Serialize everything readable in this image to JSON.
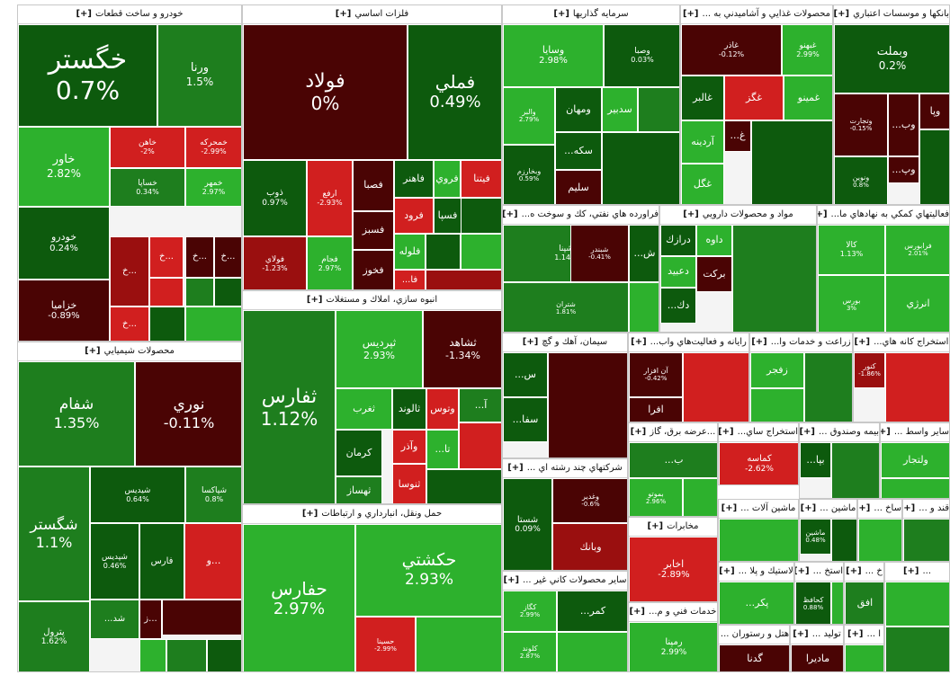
{
  "colors": {
    "dg": "#0d5a0d",
    "mg": "#1e7e1e",
    "lg": "#2db12d",
    "dr": "#4a0404",
    "mr": "#9a0f0f",
    "lr": "#d11f1f"
  },
  "chart_data": {
    "type": "heatmap",
    "plus_marker": "[+]",
    "sectors": [
      {
        "name": "خودرو و ساخت قطعات",
        "tiles": [
          {
            "symbol": "خگستر",
            "change": "0.7%",
            "color": "dg"
          },
          {
            "symbol": "ورنا",
            "change": "1.5%",
            "color": "mg"
          },
          {
            "symbol": "خاور",
            "change": "2.82%",
            "color": "lg"
          },
          {
            "symbol": "خاهن",
            "change": "-2%",
            "color": "lr"
          },
          {
            "symbol": "خمحركه",
            "change": "-2.99%",
            "color": "lr"
          },
          {
            "symbol": "خودرو",
            "change": "0.24%",
            "color": "dg"
          },
          {
            "symbol": "خساپا",
            "change": "0.34%",
            "color": "mg"
          },
          {
            "symbol": "خمهر",
            "change": "2.97%",
            "color": "lg"
          },
          {
            "symbol": "خزاميا",
            "change": "-0.89%",
            "color": "dr"
          },
          {
            "symbol": "خ...",
            "change": "",
            "color": "mr"
          },
          {
            "symbol": "خ...",
            "change": "",
            "color": "lr"
          },
          {
            "symbol": "خ...",
            "change": "",
            "color": "dr"
          },
          {
            "symbol": "خ...",
            "change": "",
            "color": "dr"
          },
          {
            "symbol": "خ...",
            "change": "",
            "color": "lr"
          }
        ]
      },
      {
        "name": "محصولات شيميايي",
        "tiles": [
          {
            "symbol": "شفام",
            "change": "1.35%",
            "color": "mg"
          },
          {
            "symbol": "نوري",
            "change": "-0.11%",
            "color": "dr"
          },
          {
            "symbol": "شگستر",
            "change": "1.1%",
            "color": "mg"
          },
          {
            "symbol": "شيديس",
            "change": "0.64%",
            "color": "dg"
          },
          {
            "symbol": "شپاكسا",
            "change": "0.8%",
            "color": "mg"
          },
          {
            "symbol": "پترول",
            "change": "1.62%",
            "color": "mg"
          },
          {
            "symbol": "شپديس",
            "change": "0.46%",
            "color": "dg"
          },
          {
            "symbol": "فارس",
            "change": "",
            "color": "dg"
          },
          {
            "symbol": "و...",
            "change": "",
            "color": "lr"
          },
          {
            "symbol": "...شد",
            "change": "",
            "color": "mg"
          },
          {
            "symbol": "ز...",
            "change": "",
            "color": "dr"
          }
        ]
      },
      {
        "name": "فلزات اساسي",
        "tiles": [
          {
            "symbol": "فولاد",
            "change": "0%",
            "color": "dr"
          },
          {
            "symbol": "فملي",
            "change": "0.49%",
            "color": "dg"
          },
          {
            "symbol": "ذوب",
            "change": "0.97%",
            "color": "dg"
          },
          {
            "symbol": "ارفع",
            "change": "-2.93%",
            "color": "lr"
          },
          {
            "symbol": "فصبا",
            "change": "",
            "color": "dr"
          },
          {
            "symbol": "فاهنر",
            "change": "",
            "color": "dg"
          },
          {
            "symbol": "فروي",
            "change": "",
            "color": "lg"
          },
          {
            "symbol": "فيتنا",
            "change": "",
            "color": "lr"
          },
          {
            "symbol": "فولاي",
            "change": "-1.23%",
            "color": "mr"
          },
          {
            "symbol": "فجام",
            "change": "2.97%",
            "color": "lg"
          },
          {
            "symbol": "فسپا",
            "change": "",
            "color": "dg"
          },
          {
            "symbol": "فرود",
            "change": "",
            "color": "lr"
          },
          {
            "symbol": "فسبز",
            "change": "",
            "color": "dr"
          },
          {
            "symbol": "فلوله",
            "change": "",
            "color": "lg"
          },
          {
            "symbol": "فخوز",
            "change": "",
            "color": "dr"
          },
          {
            "symbol": "...فا",
            "change": "",
            "color": "lr"
          }
        ]
      },
      {
        "name": "انبوه سازي، املاك و مستغلات",
        "tiles": [
          {
            "symbol": "ثفارس",
            "change": "1.12%",
            "color": "mg"
          },
          {
            "symbol": "ثپرديس",
            "change": "2.93%",
            "color": "lg"
          },
          {
            "symbol": "ثشاهد",
            "change": "-1.34%",
            "color": "dr"
          },
          {
            "symbol": "ثغرب",
            "change": "",
            "color": "lg"
          },
          {
            "symbol": "ثالوند",
            "change": "",
            "color": "dg"
          },
          {
            "symbol": "وتوس",
            "change": "",
            "color": "lr"
          },
          {
            "symbol": "...آ",
            "change": "",
            "color": "mg"
          },
          {
            "symbol": "كرمان",
            "change": "",
            "color": "dg"
          },
          {
            "symbol": "وآذر",
            "change": "",
            "color": "lr"
          },
          {
            "symbol": "...تا",
            "change": "",
            "color": "lg"
          },
          {
            "symbol": "ثهساز",
            "change": "",
            "color": "mg"
          },
          {
            "symbol": "ثنوسا",
            "change": "",
            "color": "lr"
          }
        ]
      },
      {
        "name": "حمل ونقل، انبارداري و ارتباطات",
        "tiles": [
          {
            "symbol": "حفارس",
            "change": "2.97%",
            "color": "lg"
          },
          {
            "symbol": "حكشتي",
            "change": "2.93%",
            "color": "lg"
          },
          {
            "symbol": "حسينا",
            "change": "-2.99%",
            "color": "lr"
          }
        ]
      },
      {
        "name": "سرمايه گذاريها",
        "tiles": [
          {
            "symbol": "وسايا",
            "change": "2.98%",
            "color": "lg"
          },
          {
            "symbol": "وصبا",
            "change": "0.03%",
            "color": "dg"
          },
          {
            "symbol": "والبر",
            "change": "2.79%",
            "color": "lg"
          },
          {
            "symbol": "ومهان",
            "change": "",
            "color": "dg"
          },
          {
            "symbol": "سدبير",
            "change": "",
            "color": "lg"
          },
          {
            "symbol": "وبخارزم",
            "change": "0.59%",
            "color": "dg"
          },
          {
            "symbol": "...سكه",
            "change": "",
            "color": "dg"
          },
          {
            "symbol": "سليم",
            "change": "",
            "color": "dr"
          }
        ]
      },
      {
        "name": "محصولات غذايي و آشاميدني به ...",
        "tiles": [
          {
            "symbol": "غاذر",
            "change": "-0.12%",
            "color": "dr"
          },
          {
            "symbol": "غبهنو",
            "change": "2.99%",
            "color": "lg"
          },
          {
            "symbol": "غالبر",
            "change": "",
            "color": "dg"
          },
          {
            "symbol": "غگز",
            "change": "",
            "color": "lr"
          },
          {
            "symbol": "غمينو",
            "change": "",
            "color": "lg"
          },
          {
            "symbol": "...غ",
            "change": "",
            "color": "dr"
          },
          {
            "symbol": "آردينه",
            "change": "",
            "color": "lg"
          },
          {
            "symbol": "غگل",
            "change": "",
            "color": "lg"
          }
        ]
      },
      {
        "name": "بانكها و موسسات اعتباري",
        "tiles": [
          {
            "symbol": "وبملت",
            "change": "0.2%",
            "color": "dg"
          },
          {
            "symbol": "وتجارت",
            "change": "-0.15%",
            "color": "dr"
          },
          {
            "symbol": "...وب",
            "change": "",
            "color": "dr"
          },
          {
            "symbol": "وپا",
            "change": "",
            "color": "dr"
          },
          {
            "symbol": "...وپ",
            "change": "",
            "color": "dr"
          },
          {
            "symbol": "ونوين",
            "change": "0.8%",
            "color": "dg"
          }
        ]
      },
      {
        "name": "فراورده هاي نفتي، كك و سوخت ه...",
        "tiles": [
          {
            "symbol": "شپنا",
            "change": "1.14%",
            "color": "mg"
          },
          {
            "symbol": "شبندر",
            "change": "-0.41%",
            "color": "dr"
          },
          {
            "symbol": "...ش",
            "change": "",
            "color": "dg"
          },
          {
            "symbol": "شتران",
            "change": "1.81%",
            "color": "mg"
          }
        ]
      },
      {
        "name": "مواد و محصولات دارويي",
        "tiles": [
          {
            "symbol": "درازك",
            "change": "",
            "color": "dg"
          },
          {
            "symbol": "داوه",
            "change": "",
            "color": "lg"
          },
          {
            "symbol": "دعبيد",
            "change": "",
            "color": "lg"
          },
          {
            "symbol": "بركت",
            "change": "",
            "color": "dr"
          },
          {
            "symbol": "...دك",
            "change": "",
            "color": "dg"
          }
        ]
      },
      {
        "name": "فعاليتهاي كمكي به نهادهاي ما...",
        "tiles": [
          {
            "symbol": "كالا",
            "change": "1.13%",
            "color": "lg"
          },
          {
            "symbol": "فرابورس",
            "change": "2.01%",
            "color": "lg"
          },
          {
            "symbol": "بورس",
            "change": "3%",
            "color": "lg"
          },
          {
            "symbol": "انرژي",
            "change": "",
            "color": "lg"
          }
        ]
      },
      {
        "name": "سيمان، آهك و گچ",
        "tiles": [
          {
            "symbol": "...س",
            "change": "",
            "color": "dg"
          },
          {
            "symbol": "...سفا",
            "change": "",
            "color": "dg"
          }
        ]
      },
      {
        "name": "رايانه و فعاليت‌هاي واب...",
        "tiles": [
          {
            "symbol": "آن افزار",
            "change": "-0.42%",
            "color": "dr"
          },
          {
            "symbol": "افرا",
            "change": "",
            "color": "dr"
          }
        ]
      },
      {
        "name": "زراعت و خدمات وا...",
        "tiles": [
          {
            "symbol": "زفجر",
            "change": "",
            "color": "lg"
          }
        ]
      },
      {
        "name": "استخراج كانه هاي...",
        "tiles": [
          {
            "symbol": "كنور",
            "change": "-1.86%",
            "color": "mr"
          }
        ]
      },
      {
        "name": "شركتهاي چند رشته اي ...",
        "tiles": [
          {
            "symbol": "شستا",
            "change": "0.09%",
            "color": "dg"
          },
          {
            "symbol": "وغدير",
            "change": "-0.6%",
            "color": "dr"
          },
          {
            "symbol": "وبانك",
            "change": "",
            "color": "mr"
          }
        ]
      },
      {
        "name": "...عرضه برق، گاز",
        "tiles": [
          {
            "symbol": "...ب",
            "change": "",
            "color": "mg"
          },
          {
            "symbol": "بموتو",
            "change": "2.96%",
            "color": "lg"
          }
        ]
      },
      {
        "name": "استخراج ساي...",
        "tiles": [
          {
            "symbol": "كماسه",
            "change": "-2.62%",
            "color": "lr"
          }
        ]
      },
      {
        "name": "بيمه وصندوق ...",
        "tiles": [
          {
            "symbol": "...بپا",
            "change": "",
            "color": "dg"
          }
        ]
      },
      {
        "name": "ساير واسط ...",
        "tiles": [
          {
            "symbol": "ولتجار",
            "change": "",
            "color": "lg"
          }
        ]
      },
      {
        "name": "مخابرات",
        "tiles": [
          {
            "symbol": "اخابر",
            "change": "-2.89%",
            "color": "lr"
          }
        ]
      },
      {
        "name": "ساير محصولات كاني غير ...",
        "tiles": [
          {
            "symbol": "كگاز",
            "change": "2.99%",
            "color": "lg"
          },
          {
            "symbol": "...كمر",
            "change": "",
            "color": "dg"
          },
          {
            "symbol": "كلوند",
            "change": "2.87%",
            "color": "lg"
          }
        ]
      },
      {
        "name": "خدمات فني و م...",
        "tiles": [
          {
            "symbol": "رمپنا",
            "change": "2.99%",
            "color": "lg"
          }
        ]
      },
      {
        "name": "ماشين آلات ...",
        "tiles": []
      },
      {
        "name": "ماشين ...",
        "tiles": [
          {
            "symbol": "ماشين",
            "change": "0.48%",
            "color": "dg"
          }
        ]
      },
      {
        "name": "ساخ ...",
        "tiles": []
      },
      {
        "name": "قند و ...",
        "tiles": []
      },
      {
        "name": "لاستيك و پلا ...",
        "tiles": [
          {
            "symbol": "...پكر",
            "change": "",
            "color": "lg"
          }
        ]
      },
      {
        "name": "استخ ...",
        "tiles": [
          {
            "symbol": "كحافظ",
            "change": "0.88%",
            "color": "dg"
          }
        ]
      },
      {
        "name": "خ ...",
        "tiles": [
          {
            "symbol": "افق",
            "change": "",
            "color": "mg"
          }
        ]
      },
      {
        "name": "هتل و رستوران ...",
        "tiles": [
          {
            "symbol": "گدنا",
            "change": "",
            "color": "dr"
          }
        ]
      },
      {
        "name": "توليد ...",
        "tiles": [
          {
            "symbol": "ماديرا",
            "change": "",
            "color": "dr"
          }
        ]
      },
      {
        "name": "ا ...",
        "tiles": []
      },
      {
        "name": "...",
        "tiles": []
      }
    ]
  }
}
